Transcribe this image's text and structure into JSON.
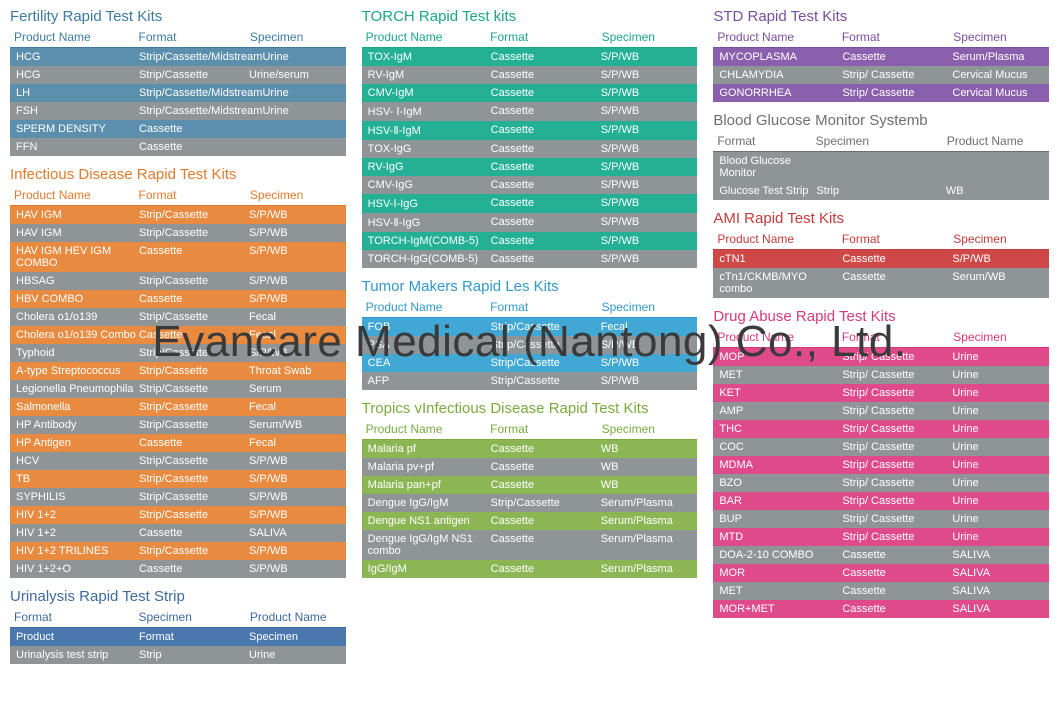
{
  "watermark": "Evancare Medical (Nantong) Co., Ltd.",
  "columns": [
    [
      {
        "title": "Fertility Rapid Test Kits",
        "title_color": "#3e7aa0",
        "header_color": "#3e7aa0",
        "cols": [
          "Product Name",
          "Format",
          "Specimen"
        ],
        "row_colors": [
          "#5c8fae",
          "#8f9497"
        ],
        "rows": [
          [
            "HCG",
            "Strip/Cassette/Midstream",
            "Urine"
          ],
          [
            "HCG",
            "Strip/Cassette",
            "Urine/serum"
          ],
          [
            "LH",
            "Strip/Cassette/Midstream",
            "Urine"
          ],
          [
            "FSH",
            "Strip/Cassette/Midstream",
            "Urine"
          ],
          [
            "SPERM DENSITY",
            "Cassette",
            ""
          ],
          [
            "FFN",
            "Cassette",
            ""
          ]
        ]
      },
      {
        "title": "Infectious Disease Rapid Test Kits",
        "title_color": "#e07b2e",
        "header_color": "#e07b2e",
        "cols": [
          "Product Name",
          "Format",
          "Specimen"
        ],
        "row_colors": [
          "#e88a3f",
          "#8f9497"
        ],
        "rows": [
          [
            "HAV IGM",
            "Strip/Cassette",
            "S/P/WB"
          ],
          [
            "HAV IGM",
            "Strip/Cassette",
            "S/P/WB"
          ],
          [
            "HAV IGM HEV IGM COMBO",
            "Cassette",
            "S/P/WB"
          ],
          [
            "HBSAG",
            "Strip/Cassette",
            "S/P/WB"
          ],
          [
            "HBV COMBO",
            "Cassette",
            "S/P/WB"
          ],
          [
            "Cholera o1/o139",
            "Strip/Cassette",
            "Fecal"
          ],
          [
            "Cholera o1/o139 Combo",
            "Cassette",
            "Fecal"
          ],
          [
            "Typhoid",
            "Strip/Cassette",
            "S/P/WB"
          ],
          [
            "A-type Streptococcus",
            "Strip/Cassette",
            "Throat Swab"
          ],
          [
            "Legionella Pneumophila",
            "Strip/Cassette",
            "Serum"
          ],
          [
            "Salmonella",
            "Strip/Cassette",
            "Fecal"
          ],
          [
            "HP Antibody",
            "Strip/Cassette",
            "Serum/WB"
          ],
          [
            "HP Antigen",
            "Cassette",
            "Fecal"
          ],
          [
            "HCV",
            "Strip/Cassette",
            "S/P/WB"
          ],
          [
            "TB",
            "Strip/Cassette",
            "S/P/WB"
          ],
          [
            "SYPHILIS",
            "Strip/Cassette",
            "S/P/WB"
          ],
          [
            "HIV 1+2",
            "Strip/Cassette",
            "S/P/WB"
          ],
          [
            "HIV 1+2",
            "Cassette",
            "SALIVA"
          ],
          [
            "HIV 1+2 TRILINES",
            "Strip/Cassette",
            "S/P/WB"
          ],
          [
            "HIV 1+2+O",
            "Cassette",
            "S/P/WB"
          ]
        ]
      },
      {
        "title": "Urinalysis Rapid Test Strip",
        "title_color": "#3e6aa0",
        "header_color": "#3e6aa0",
        "cols": [
          "Format",
          "Specimen",
          "Product Name"
        ],
        "row_colors": [
          "#4a77ad",
          "#8f9497"
        ],
        "rows": [
          [
            "Product",
            "Format",
            "Specimen"
          ],
          [
            "Urinalysis test strip",
            "Strip",
            "Urine"
          ]
        ]
      }
    ],
    [
      {
        "title": "TORCH Rapid Test kits",
        "title_color": "#1aa589",
        "header_color": "#1aa589",
        "cols": [
          "Product Name",
          "Format",
          "Specimen"
        ],
        "row_colors": [
          "#23b095",
          "#8f9497"
        ],
        "rows": [
          [
            "TOX-IgM",
            "Cassette",
            "S/P/WB"
          ],
          [
            "RV-IgM",
            "Cassette",
            "S/P/WB"
          ],
          [
            "CMV-IgM",
            "Cassette",
            "S/P/WB"
          ],
          [
            "HSV- Ⅰ-IgM",
            "Cassette",
            "S/P/WB"
          ],
          [
            "HSV-Ⅱ-IgM",
            "Cassette",
            "S/P/WB"
          ],
          [
            "TOX-IgG",
            "Cassette",
            "S/P/WB"
          ],
          [
            "RV-IgG",
            "Cassette",
            "S/P/WB"
          ],
          [
            "CMV-IgG",
            "Cassette",
            "S/P/WB"
          ],
          [
            "HSV-Ⅰ-IgG",
            "Cassette",
            "S/P/WB"
          ],
          [
            "HSV-Ⅱ-IgG",
            "Cassette",
            "S/P/WB"
          ],
          [
            "TORCH-IgM(COMB-5)",
            "Cassette",
            "S/P/WB"
          ],
          [
            "TORCH-IgG(COMB-5)",
            "Cassette",
            "S/P/WB"
          ]
        ]
      },
      {
        "title": "Tumor Makers Rapid Les Kits",
        "title_color": "#3199c9",
        "header_color": "#3199c9",
        "cols": [
          "Product Name",
          "Format",
          "Specimen"
        ],
        "row_colors": [
          "#41a7d4",
          "#8f9497"
        ],
        "rows": [
          [
            "FOB",
            "Strip/Cassette",
            "Fecal"
          ],
          [
            "PSA",
            "Strip/Cassette",
            "S/P/WB"
          ],
          [
            "CEA",
            "Strip/Cassette",
            "S/P/WB"
          ],
          [
            "AFP",
            "Strip/Cassette",
            "S/P/WB"
          ]
        ]
      },
      {
        "title": "Tropics vInfectious Disease Rapid Test Kits",
        "title_color": "#7aaa3e",
        "header_color": "#7aaa3e",
        "cols": [
          "Product Name",
          "Format",
          "Specimen"
        ],
        "row_colors": [
          "#8cb654",
          "#8f9497"
        ],
        "rows": [
          [
            "Malaria pf",
            "Cassette",
            "WB"
          ],
          [
            "Malaria pv+pf",
            "Cassette",
            "WB"
          ],
          [
            "Malaria pan+pf",
            "Cassette",
            "WB"
          ],
          [
            "Dengue IgG/IgM",
            "Strip/Cassette",
            "Serum/Plasma"
          ],
          [
            "Dengue NS1 antigen",
            "Cassette",
            "Serum/Plasma"
          ],
          [
            "Dengue IgG/IgM  NS1 combo",
            "Cassette",
            "Serum/Plasma"
          ],
          [
            "    IgG/IgM",
            "Cassette",
            "Serum/Plasma"
          ]
        ]
      }
    ],
    [
      {
        "title": "STD Rapid Test Kits",
        "title_color": "#7a4e9e",
        "header_color": "#7a4e9e",
        "cols": [
          "Product Name",
          "Format",
          "Specimen"
        ],
        "row_colors": [
          "#8a5fae",
          "#8f9497"
        ],
        "rows": [
          [
            "MYCOPLASMA",
            "Cassette",
            "Serum/Plasma"
          ],
          [
            "CHLAMYDIA",
            "Strip/ Cassette",
            "Cervical Mucus"
          ],
          [
            "GONORRHEA",
            "Strip/ Cassette",
            "Cervical Mucus"
          ]
        ]
      },
      {
        "title": "Blood Glucose Monitor Systemb",
        "title_color": "#6e6e6e",
        "header_color": "#6e6e6e",
        "cols": [
          "Format",
          "Specimen",
          "Product Name"
        ],
        "col_layout": "b",
        "row_colors": [
          "#8f9497",
          "#8f9497"
        ],
        "rows": [
          [
            "Blood Glucose Monitor",
            "",
            ""
          ],
          [
            "Glucose Test Strip",
            "Strip",
            "WB"
          ]
        ]
      },
      {
        "title": "AMI  Rapid Test Kits",
        "title_color": "#c43a3a",
        "header_color": "#c43a3a",
        "cols": [
          "Product Name",
          "Format",
          "Specimen"
        ],
        "row_colors": [
          "#cf4848",
          "#8f9497"
        ],
        "rows": [
          [
            "cTN1",
            "Cassette",
            "S/P/WB"
          ],
          [
            "cTn1/CKMB/MYO combo",
            "Cassette",
            "Serum/WB"
          ]
        ]
      },
      {
        "title": "Drug Abuse Rapid Test Kits",
        "title_color": "#d63a7a",
        "header_color": "#d63a7a",
        "cols": [
          "Product Name",
          "Format",
          "Specimen"
        ],
        "row_colors": [
          "#de4a8a",
          "#8f9497"
        ],
        "rows": [
          [
            "MOP",
            "Strip/ Cassette",
            "Urine"
          ],
          [
            "MET",
            "Strip/ Cassette",
            "Urine"
          ],
          [
            "KET",
            "Strip/ Cassette",
            "Urine"
          ],
          [
            "AMP",
            "Strip/ Cassette",
            "Urine"
          ],
          [
            "THC",
            "Strip/ Cassette",
            "Urine"
          ],
          [
            "COC",
            "Strip/ Cassette",
            "Urine"
          ],
          [
            "MDMA",
            "Strip/ Cassette",
            "Urine"
          ],
          [
            "BZO",
            "Strip/ Cassette",
            "Urine"
          ],
          [
            "BAR",
            "Strip/ Cassette",
            "Urine"
          ],
          [
            "BUP",
            "Strip/ Cassette",
            "Urine"
          ],
          [
            "MTD",
            "Strip/ Cassette",
            "Urine"
          ],
          [
            "DOA-2-10 COMBO",
            "Cassette",
            "SALIVA"
          ],
          [
            "MOR",
            "Cassette",
            "SALIVA"
          ],
          [
            "MET",
            "Cassette",
            "SALIVA"
          ],
          [
            "MOR+MET",
            "Cassette",
            "SALIVA"
          ]
        ]
      }
    ]
  ]
}
